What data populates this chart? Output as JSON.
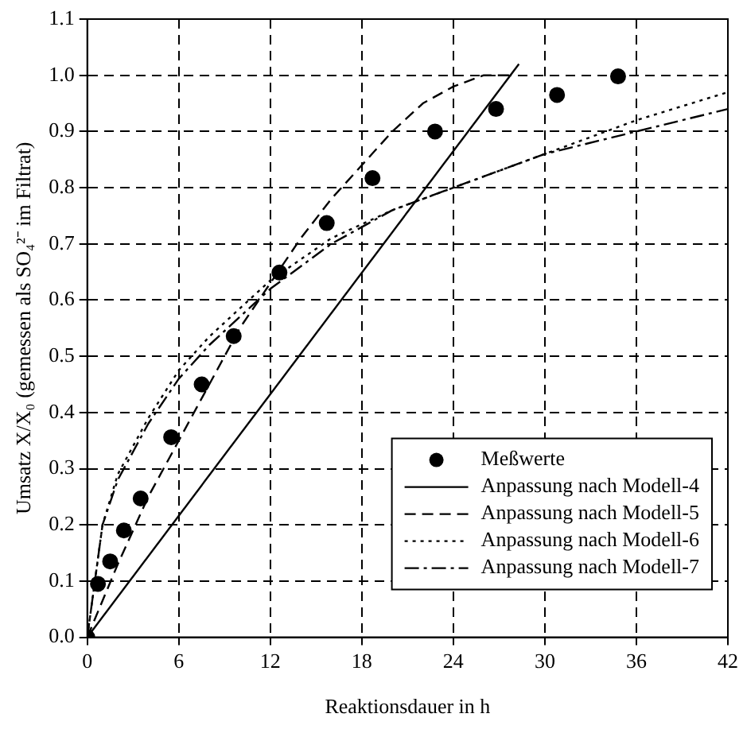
{
  "chart_data": {
    "type": "line",
    "xlabel": "Reaktionsdauer in h",
    "ylabel": "Umsatz X/X₀ (gemessen als SO₄²⁻ im Filtrat)",
    "xlim": [
      0,
      42
    ],
    "xticks": [
      0,
      6,
      12,
      18,
      24,
      30,
      36,
      42
    ],
    "ylim": [
      0,
      1.1
    ],
    "yticks": [
      {
        "value": 0,
        "label": "0.0"
      },
      0.1,
      0.2,
      0.3,
      0.4,
      0.5,
      0.6,
      0.7,
      0.8,
      0.9,
      {
        "value": 1,
        "label": "1.0"
      },
      1.1
    ],
    "grid": true,
    "legend": "bottom right",
    "series": [
      {
        "name": "Meßwerte",
        "type": "scatter",
        "marker": "circle",
        "color": "#000000",
        "x": [
          0,
          0.7,
          1.5,
          2.4,
          3.5,
          5.5,
          7.5,
          9.6,
          12.6,
          15.7,
          18.7,
          22.8,
          26.8,
          30.8,
          34.8
        ],
        "values": [
          0,
          0.095,
          0.135,
          0.19,
          0.247,
          0.356,
          0.45,
          0.536,
          0.649,
          0.737,
          0.817,
          0.9,
          0.94,
          0.965,
          0.998
        ]
      },
      {
        "name": "Anpassung nach Modell-4",
        "type": "line",
        "line_style": "solid",
        "color": "#000000",
        "x": [
          0,
          28.3
        ],
        "values": [
          0,
          1.02
        ]
      },
      {
        "name": "Anpassung nach Modell-5",
        "type": "line",
        "line_style": "dashed",
        "color": "#000000",
        "x": [
          0,
          2,
          4,
          6,
          8,
          10,
          12,
          14,
          16,
          18,
          20,
          22,
          24,
          26,
          28
        ],
        "values": [
          0,
          0.13,
          0.25,
          0.35,
          0.45,
          0.55,
          0.63,
          0.71,
          0.78,
          0.84,
          0.9,
          0.95,
          0.98,
          1.0,
          1.0
        ]
      },
      {
        "name": "Anpassung nach Modell-6",
        "type": "line",
        "line_style": "dotted",
        "color": "#000000",
        "x": [
          0,
          1,
          2,
          4,
          6,
          8,
          12,
          16,
          20,
          24,
          30,
          36,
          42
        ],
        "values": [
          0,
          0.2,
          0.29,
          0.39,
          0.475,
          0.535,
          0.635,
          0.71,
          0.76,
          0.8,
          0.86,
          0.92,
          0.97
        ]
      },
      {
        "name": "Anpassung nach Modell-7",
        "type": "line",
        "line_style": "dashdot",
        "color": "#000000",
        "x": [
          0,
          1,
          2,
          4,
          6,
          8,
          12,
          16,
          20,
          24,
          30,
          36,
          42
        ],
        "values": [
          0,
          0.2,
          0.28,
          0.38,
          0.46,
          0.52,
          0.62,
          0.7,
          0.76,
          0.8,
          0.86,
          0.9,
          0.94
        ]
      }
    ]
  }
}
